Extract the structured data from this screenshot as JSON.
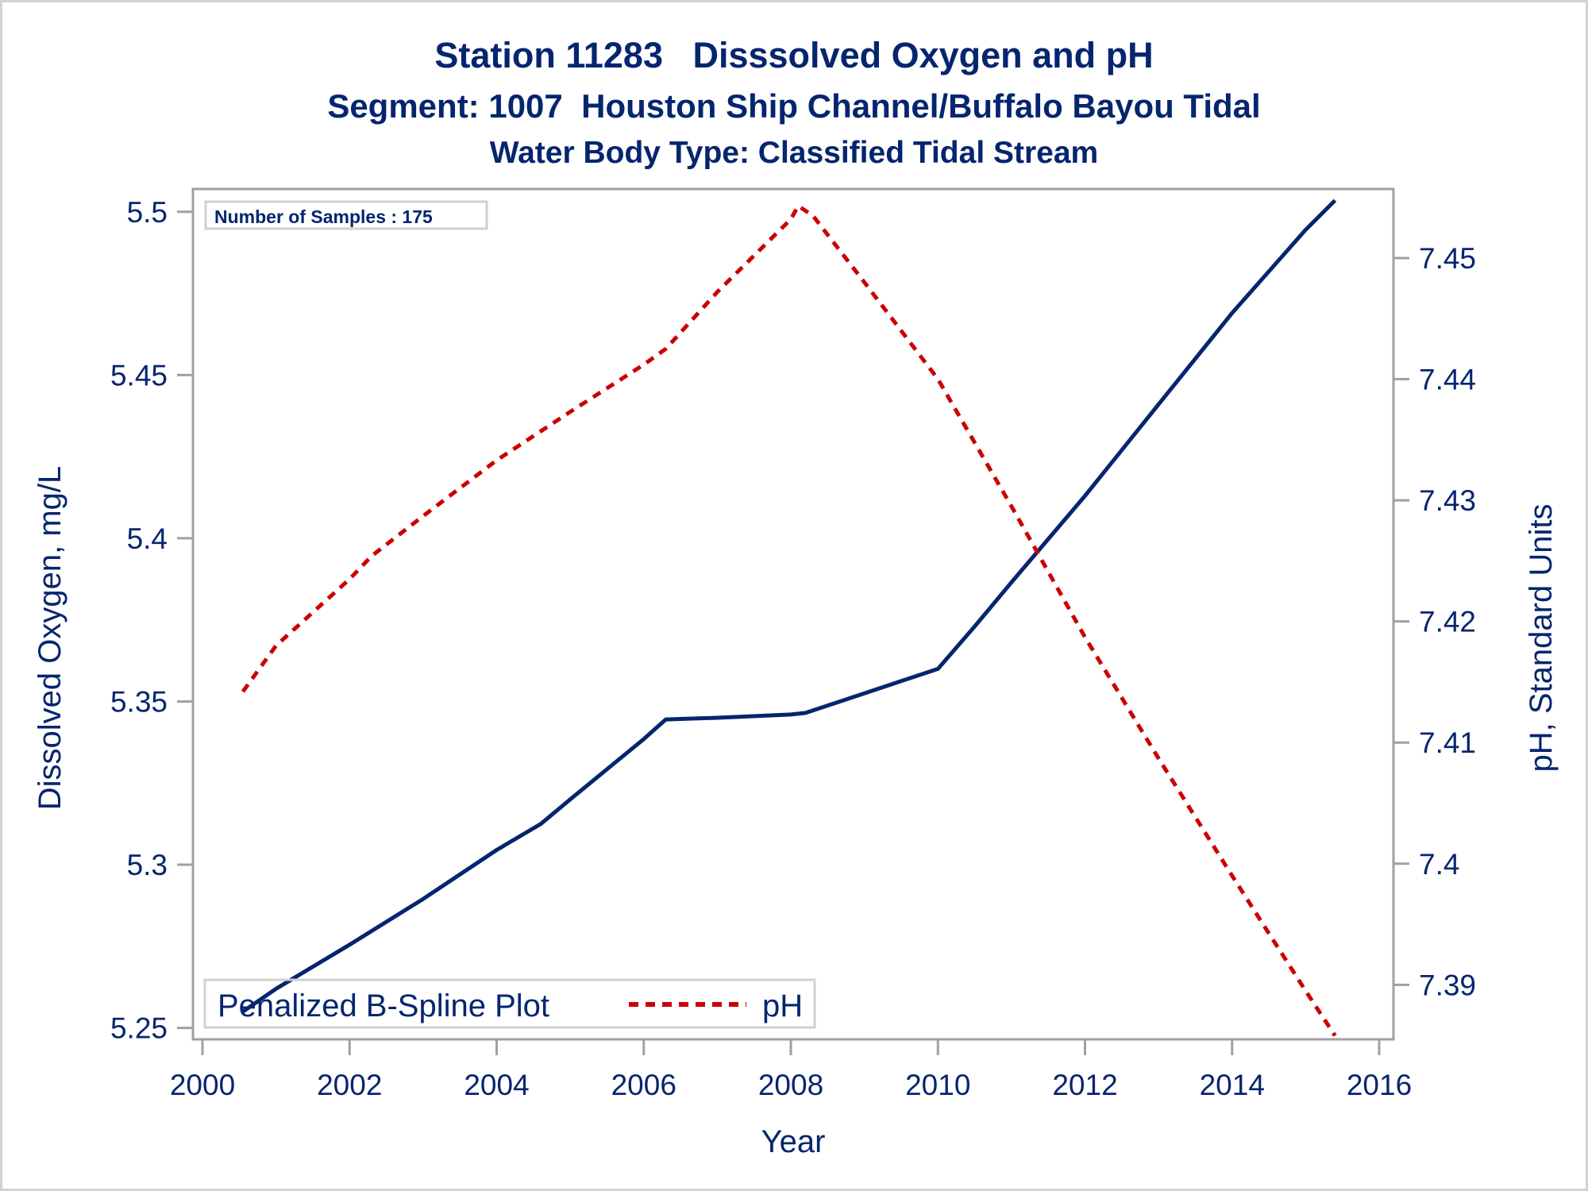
{
  "chart_data": {
    "type": "line",
    "title": "Station 11283   Disssolved Oxygen and pH",
    "subtitle": "Segment: 1007  Houston Ship Channel/Buffalo Bayou Tidal",
    "subtitle2": "Water Body Type: Classified Tidal Stream",
    "xlabel": "Year",
    "ylabel": "Dissolved Oxygen, mg/L",
    "y2label": "pH, Standard Units",
    "xlim": [
      2000,
      2016
    ],
    "ylim": [
      5.2465,
      5.507
    ],
    "y2lim": [
      7.3855,
      7.4557
    ],
    "x_ticks": [
      "2000",
      "2002",
      "2004",
      "2006",
      "2008",
      "2010",
      "2012",
      "2014",
      "2016"
    ],
    "x_tick_values": [
      2000,
      2002,
      2004,
      2006,
      2008,
      2010,
      2012,
      2014,
      2016
    ],
    "y_ticks": [
      "5.25",
      "5.3",
      "5.35",
      "5.4",
      "5.45",
      "5.5"
    ],
    "y_tick_values": [
      5.25,
      5.3,
      5.35,
      5.4,
      5.45,
      5.5
    ],
    "y2_ticks": [
      "7.39",
      "7.4",
      "7.41",
      "7.42",
      "7.43",
      "7.44",
      "7.45"
    ],
    "y2_tick_values": [
      7.39,
      7.4,
      7.41,
      7.42,
      7.43,
      7.44,
      7.45
    ],
    "grid": false,
    "annotation": "Number of Samples : 175",
    "legend": {
      "placement": "bottom-left",
      "title": "Penalized B-Spline Plot",
      "entries": [
        {
          "name": "pH",
          "style": "dashed",
          "color": "#cc0000"
        }
      ]
    },
    "series": [
      {
        "name": "Dissolved Oxygen",
        "axis": "left",
        "style": "solid",
        "color": "#05256f",
        "x": [
          2000.55,
          2001.0,
          2002.0,
          2003.0,
          2004.0,
          2004.6,
          2005.0,
          2006.0,
          2006.3,
          2007.0,
          2008.0,
          2008.2,
          2009.0,
          2010.0,
          2010.5,
          2011.0,
          2012.0,
          2013.0,
          2014.0,
          2015.0,
          2015.4
        ],
        "values": [
          5.255,
          5.262,
          5.2755,
          5.2895,
          5.3045,
          5.3125,
          5.32,
          5.3385,
          5.3445,
          5.345,
          5.346,
          5.3465,
          5.3525,
          5.36,
          5.373,
          5.3865,
          5.413,
          5.441,
          5.469,
          5.4945,
          5.5035
        ]
      },
      {
        "name": "pH",
        "axis": "right",
        "style": "dashed",
        "color": "#cc0000",
        "x": [
          2000.55,
          2001.0,
          2002.0,
          2002.3,
          2003.0,
          2004.0,
          2005.0,
          2006.0,
          2006.3,
          2007.0,
          2008.0,
          2008.1,
          2008.3,
          2009.0,
          2010.0,
          2011.0,
          2012.0,
          2013.0,
          2014.0,
          2015.0,
          2015.4
        ],
        "values": [
          7.4142,
          7.418,
          7.4235,
          7.4254,
          7.4287,
          7.4333,
          7.4373,
          7.4412,
          7.4425,
          7.4472,
          7.4532,
          7.4543,
          7.4535,
          7.448,
          7.44,
          7.4295,
          7.4187,
          7.4087,
          7.399,
          7.3895,
          7.3858
        ]
      }
    ]
  }
}
